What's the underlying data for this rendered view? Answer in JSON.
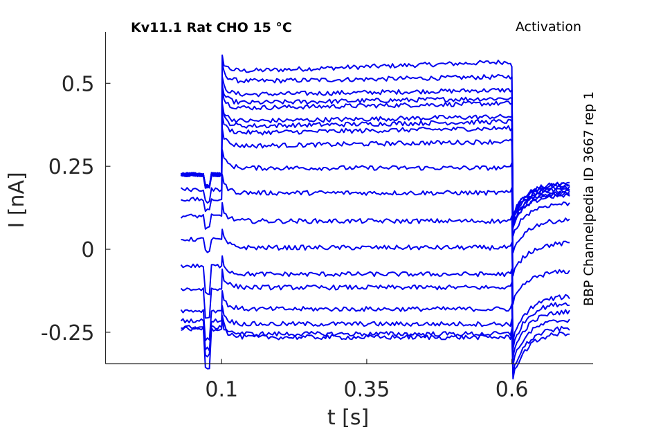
{
  "chart_data": {
    "type": "line",
    "title_left": "Kv11.1  Rat  CHO  15 °C",
    "title_right": "Activation",
    "side_label": "BBP Channelpedia ID 3667 rep 1",
    "xlabel": "t [s]",
    "ylabel": "I [nA]",
    "xlim": [
      -0.1,
      0.74
    ],
    "ylim": [
      -0.345,
      0.655
    ],
    "xticks": [
      0.1,
      0.35,
      0.6
    ],
    "xtick_labels": [
      "0.1",
      "0.35",
      "0.6"
    ],
    "yticks": [
      0.5,
      0.25,
      0,
      -0.25
    ],
    "ytick_labels": [
      "0.5",
      "0.25",
      "0",
      "-0.25"
    ],
    "series_color": "#0000ee",
    "grid": false,
    "protocol_times": {
      "t_start": 0.03,
      "t_step_on": 0.1,
      "t_step_off": 0.6,
      "t_end": 0.7
    },
    "series": [
      {
        "baseline": 0.225,
        "step_level": 0.55,
        "tail_level": 0.2
      },
      {
        "baseline": 0.225,
        "step_level": 0.52,
        "tail_level": 0.2
      },
      {
        "baseline": 0.225,
        "step_level": 0.48,
        "tail_level": 0.195
      },
      {
        "baseline": 0.225,
        "step_level": 0.455,
        "tail_level": 0.19
      },
      {
        "baseline": 0.225,
        "step_level": 0.44,
        "tail_level": 0.185
      },
      {
        "baseline": 0.225,
        "step_level": 0.4,
        "tail_level": 0.18
      },
      {
        "baseline": 0.225,
        "step_level": 0.385,
        "tail_level": 0.175
      },
      {
        "baseline": 0.225,
        "step_level": 0.365,
        "tail_level": 0.17
      },
      {
        "baseline": 0.225,
        "step_level": 0.325,
        "tail_level": 0.165
      },
      {
        "baseline": 0.18,
        "step_level": 0.26,
        "tail_level": 0.14
      },
      {
        "baseline": 0.15,
        "step_level": 0.185,
        "tail_level": 0.09
      },
      {
        "baseline": 0.1,
        "step_level": 0.1,
        "tail_level": 0.02
      },
      {
        "baseline": 0.03,
        "step_level": 0.02,
        "tail_level": -0.065
      },
      {
        "baseline": -0.05,
        "step_level": -0.06,
        "tail_level": -0.14
      },
      {
        "baseline": -0.12,
        "step_level": -0.1,
        "tail_level": -0.16
      },
      {
        "baseline": -0.185,
        "step_level": -0.165,
        "tail_level": -0.185
      },
      {
        "baseline": -0.215,
        "step_level": -0.21,
        "tail_level": -0.21
      },
      {
        "baseline": -0.235,
        "step_level": -0.24,
        "tail_level": -0.235
      },
      {
        "baseline": -0.24,
        "step_level": -0.25,
        "tail_level": -0.25
      }
    ]
  }
}
